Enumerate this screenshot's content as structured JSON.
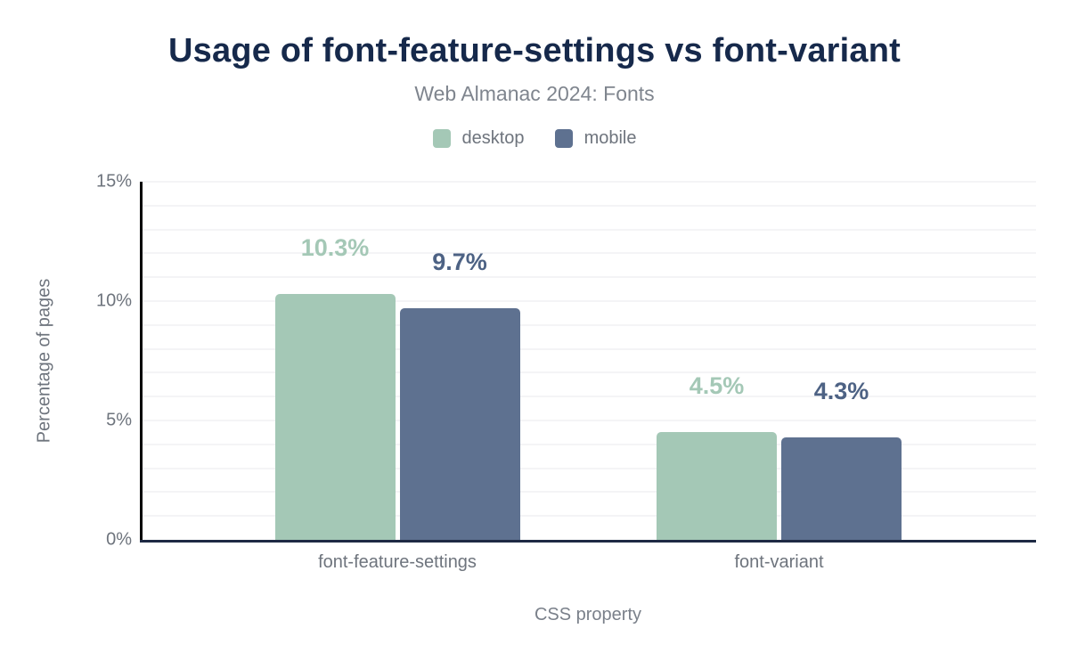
{
  "header": {
    "title": "Usage of font-feature-settings vs font-variant",
    "subtitle": "Web Almanac 2024: Fonts"
  },
  "colors": {
    "title_navy": "#16294b",
    "axis_text_gray": "#6e747d",
    "baseline_navy": "#1e2a44",
    "gridline_gray": "#f4f4f6",
    "desktop_green": "#a4c8b6",
    "mobile_slate": "#5e7190",
    "mobile_label_slate": "#4d6284"
  },
  "chart_data": {
    "type": "bar",
    "title": "Usage of font-feature-settings vs font-variant",
    "subtitle": "Web Almanac 2024: Fonts",
    "categories": [
      "font-feature-settings",
      "font-variant"
    ],
    "series": [
      {
        "name": "desktop",
        "color": "#a4c8b6",
        "label_color": "#a4c8b6",
        "values": [
          10.3,
          4.5
        ],
        "labels": [
          "10.3%",
          "4.5%"
        ]
      },
      {
        "name": "mobile",
        "color": "#5e7190",
        "label_color": "#4d6284",
        "values": [
          9.7,
          4.3
        ],
        "labels": [
          "9.7%",
          "4.3%"
        ]
      }
    ],
    "xlabel": "CSS property",
    "ylabel": "Percentage of pages",
    "ylim": [
      0,
      15
    ],
    "grid_step": 1,
    "yticks": [
      {
        "value": 0,
        "label": "0%"
      },
      {
        "value": 5,
        "label": "5%"
      },
      {
        "value": 10,
        "label": "10%"
      },
      {
        "value": 15,
        "label": "15%"
      }
    ],
    "legend_position": "top",
    "grid": true
  }
}
